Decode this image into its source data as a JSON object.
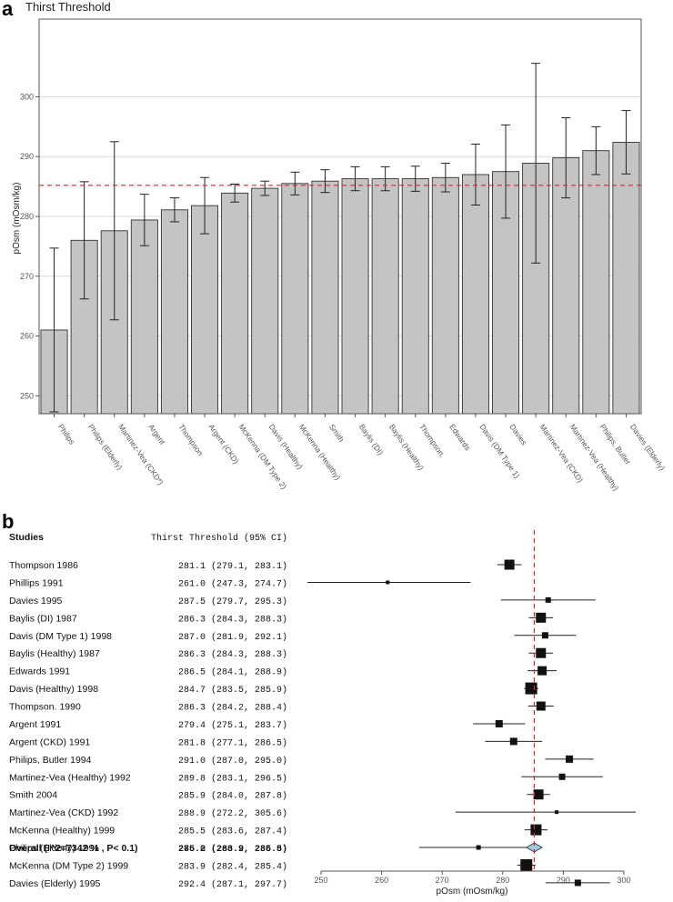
{
  "panel_a_label": "a",
  "panel_b_label": "b",
  "chart_data": [
    {
      "type": "bar",
      "title": "Thirst Threshold",
      "ylabel": "pOsm (mOsm/kg)",
      "xlabel": "",
      "ylim": [
        247,
        313
      ],
      "yticks": [
        250,
        260,
        270,
        280,
        290,
        300
      ],
      "reference_line": 285.2,
      "grid": true,
      "categories": [
        "Philips",
        "Philips (Elderly)",
        "Martinez-Vea (CKD*)",
        "Argent",
        "Thompson",
        "Argent (CKD)",
        "McKenna (DM Type 2)",
        "Davis (Healthy)",
        "McKenna (Healthy)",
        "Smith",
        "Baylis (DI)",
        "Baylis (Healthy)",
        "Thompson.",
        "Edwards",
        "Davis (DM Type 1)",
        "Davies",
        "Martinez-Vea (CKD)",
        "Martinez-Vea (Healthy)",
        "Philips, Butler",
        "Davies (Elderly)"
      ],
      "values": [
        261.0,
        276.0,
        277.6,
        279.4,
        281.1,
        281.8,
        283.9,
        284.7,
        285.5,
        285.9,
        286.3,
        286.3,
        286.3,
        286.5,
        287.0,
        287.5,
        288.9,
        289.8,
        291.0,
        292.4
      ],
      "lower": [
        247.3,
        266.2,
        262.7,
        275.1,
        279.1,
        277.1,
        282.4,
        283.5,
        283.6,
        284.0,
        284.3,
        284.3,
        284.2,
        284.1,
        281.9,
        279.7,
        272.2,
        283.1,
        287.0,
        287.1
      ],
      "upper": [
        274.7,
        285.8,
        292.5,
        283.7,
        283.1,
        286.5,
        285.4,
        285.9,
        287.4,
        287.8,
        288.3,
        288.3,
        288.4,
        288.9,
        292.1,
        295.3,
        305.6,
        296.5,
        295.0,
        297.7
      ]
    },
    {
      "type": "forest",
      "header_studies": "Studies",
      "header_ci": "Thirst Threshold (95% CI)",
      "xlabel": "pOsm (mOsm/kg)",
      "xlim": [
        250,
        300
      ],
      "xticks": [
        250,
        260,
        270,
        280,
        290,
        300
      ],
      "reference_line": 285.2,
      "studies": [
        {
          "name": "Thompson 1986",
          "est": 281.1,
          "lo": 279.1,
          "hi": 283.1,
          "ci_text": "281.1 (279.1, 283.1)",
          "w": 11
        },
        {
          "name": "Phillips 1991",
          "est": 261.0,
          "lo": 247.3,
          "hi": 274.7,
          "ci_text": "261.0 (247.3, 274.7)",
          "w": 4
        },
        {
          "name": "Davies 1995",
          "est": 287.5,
          "lo": 279.7,
          "hi": 295.3,
          "ci_text": "287.5 (279.7, 295.3)",
          "w": 6
        },
        {
          "name": "Baylis (DI) 1987",
          "est": 286.3,
          "lo": 284.3,
          "hi": 288.3,
          "ci_text": "286.3 (284.3, 288.3)",
          "w": 11
        },
        {
          "name": "Davis (DM Type 1) 1998",
          "est": 287.0,
          "lo": 281.9,
          "hi": 292.1,
          "ci_text": "287.0 (281.9, 292.1)",
          "w": 7
        },
        {
          "name": "Baylis (Healthy) 1987",
          "est": 286.3,
          "lo": 284.3,
          "hi": 288.3,
          "ci_text": "286.3 (284.3, 288.3)",
          "w": 11
        },
        {
          "name": "Edwards 1991",
          "est": 286.5,
          "lo": 284.1,
          "hi": 288.9,
          "ci_text": "286.5 (284.1, 288.9)",
          "w": 10
        },
        {
          "name": "Davis (Healthy) 1998",
          "est": 284.7,
          "lo": 283.5,
          "hi": 285.9,
          "ci_text": "284.7 (283.5, 285.9)",
          "w": 13
        },
        {
          "name": "Thompson. 1990",
          "est": 286.3,
          "lo": 284.2,
          "hi": 288.4,
          "ci_text": "286.3 (284.2, 288.4)",
          "w": 10
        },
        {
          "name": "Argent 1991",
          "est": 279.4,
          "lo": 275.1,
          "hi": 283.7,
          "ci_text": "279.4 (275.1, 283.7)",
          "w": 8
        },
        {
          "name": "Argent (CKD) 1991",
          "est": 281.8,
          "lo": 277.1,
          "hi": 286.5,
          "ci_text": "281.8 (277.1, 286.5)",
          "w": 8
        },
        {
          "name": "Philips, Butler 1994",
          "est": 291.0,
          "lo": 287.0,
          "hi": 295.0,
          "ci_text": "291.0 (287.0, 295.0)",
          "w": 8
        },
        {
          "name": "Martinez-Vea (Healthy) 1992",
          "est": 289.8,
          "lo": 283.1,
          "hi": 296.5,
          "ci_text": "289.8 (283.1, 296.5)",
          "w": 7
        },
        {
          "name": "Smith 2004",
          "est": 285.9,
          "lo": 284.0,
          "hi": 287.8,
          "ci_text": "285.9 (284.0, 287.8)",
          "w": 11
        },
        {
          "name": "Martinez-Vea (CKD) 1992",
          "est": 288.9,
          "lo": 272.2,
          "hi": 305.6,
          "ci_text": "288.9 (272.2, 305.6)",
          "w": 4
        },
        {
          "name": "McKenna (Healthy) 1999",
          "est": 285.5,
          "lo": 283.6,
          "hi": 287.4,
          "ci_text": "285.5 (283.6, 287.4)",
          "w": 12
        },
        {
          "name": "Philips (Elderly) 1991",
          "est": 276.0,
          "lo": 266.2,
          "hi": 285.8,
          "ci_text": "276.0 (266.2, 285.8)",
          "w": 5
        },
        {
          "name": "McKenna (DM Type 2) 1999",
          "est": 283.9,
          "lo": 282.4,
          "hi": 285.4,
          "ci_text": "283.9 (282.4, 285.4)",
          "w": 13
        },
        {
          "name": "Davies (Elderly) 1995",
          "est": 292.4,
          "lo": 287.1,
          "hi": 297.7,
          "ci_text": "292.4 (287.1, 297.7)",
          "w": 7
        }
      ],
      "overall": {
        "name": "Overall (I^2=7342 % , P< 0.1)",
        "est": 285.2,
        "lo": 283.9,
        "hi": 286.5,
        "ci_text": "285.2 (283.9, 286.5)"
      }
    }
  ]
}
